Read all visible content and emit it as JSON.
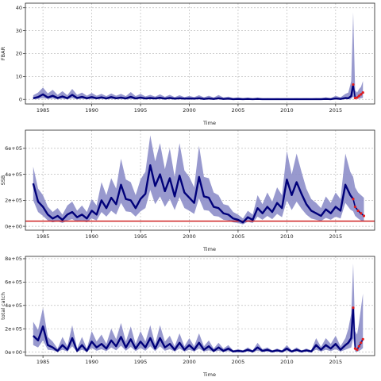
{
  "chart_data": [
    {
      "type": "line",
      "title": "",
      "xlabel": "Time",
      "ylabel": "FBAR",
      "xlim": [
        1983.2,
        2019.0
      ],
      "ylim": [
        -2,
        42
      ],
      "xticks": [
        1985,
        1990,
        1995,
        2000,
        2005,
        2010,
        2015
      ],
      "yticks": [
        0,
        10,
        20,
        30,
        40
      ],
      "ytick_labels": [
        "0",
        "10",
        "20",
        "30",
        "40"
      ],
      "grid": true,
      "colors": {
        "median": "#00007a",
        "band": "#8d8ec9",
        "projection": "#e21b1b"
      },
      "series": [
        {
          "role": "median",
          "x": [
            1984.0,
            1984.5,
            1985.0,
            1985.5,
            1986.0,
            1986.5,
            1987.0,
            1987.5,
            1988.0,
            1988.5,
            1989.0,
            1989.5,
            1990.0,
            1990.5,
            1991.0,
            1991.5,
            1992.0,
            1992.5,
            1993.0,
            1993.5,
            1994.0,
            1994.5,
            1995.0,
            1995.5,
            1996.0,
            1996.5,
            1997.0,
            1997.5,
            1998.0,
            1998.5,
            1999.0,
            1999.5,
            2000.0,
            2000.5,
            2001.0,
            2001.5,
            2002.0,
            2002.5,
            2003.0,
            2003.5,
            2004.0,
            2004.5,
            2005.0,
            2005.5,
            2006.0,
            2006.5,
            2007.0,
            2007.5,
            2008.0,
            2008.5,
            2009.0,
            2009.5,
            2010.0,
            2010.5,
            2011.0,
            2011.5,
            2012.0,
            2012.5,
            2013.0,
            2013.5,
            2014.0,
            2014.5,
            2015.0,
            2015.5,
            2016.0,
            2016.3,
            2016.6,
            2016.8
          ],
          "y": [
            0.5,
            1.0,
            2.2,
            0.8,
            1.6,
            0.6,
            1.3,
            0.5,
            2.0,
            0.6,
            1.1,
            0.5,
            1.0,
            0.5,
            0.9,
            0.4,
            1.0,
            0.5,
            0.8,
            0.4,
            1.1,
            0.4,
            0.8,
            0.4,
            0.6,
            0.4,
            0.7,
            0.3,
            0.6,
            0.3,
            0.5,
            0.3,
            0.4,
            0.3,
            0.5,
            0.2,
            0.4,
            0.2,
            0.5,
            0.2,
            0.3,
            0.1,
            0.2,
            0.1,
            0.2,
            0.1,
            0.2,
            0.1,
            0.1,
            0.1,
            0.1,
            0.1,
            0.1,
            0.1,
            0.1,
            0.1,
            0.1,
            0.1,
            0.1,
            0.1,
            0.2,
            0.1,
            0.4,
            0.2,
            0.6,
            0.5,
            1.5,
            6.5
          ],
          "lower": [
            0.1,
            0.2,
            0.6,
            0.2,
            0.4,
            0.1,
            0.3,
            0.1,
            0.5,
            0.1,
            0.3,
            0.1,
            0.2,
            0.1,
            0.2,
            0.1,
            0.2,
            0.1,
            0.2,
            0.1,
            0.2,
            0.1,
            0.2,
            0.1,
            0.1,
            0.1,
            0.1,
            0.1,
            0.1,
            0.1,
            0.1,
            0.1,
            0.1,
            0.1,
            0.1,
            0.0,
            0.1,
            0.0,
            0.1,
            0.0,
            0.1,
            0.0,
            0.0,
            0.0,
            0.0,
            0.0,
            0.0,
            0.0,
            0.0,
            0.0,
            0.0,
            0.0,
            0.0,
            0.0,
            0.0,
            0.0,
            0.0,
            0.0,
            0.0,
            0.0,
            0.0,
            0.0,
            0.1,
            0.0,
            0.1,
            0.1,
            0.3,
            1.2
          ],
          "upper": [
            1.8,
            3.0,
            5.2,
            2.6,
            4.2,
            2.0,
            3.6,
            1.8,
            4.6,
            2.0,
            3.0,
            1.6,
            2.8,
            1.6,
            2.4,
            1.4,
            2.6,
            1.6,
            2.4,
            1.4,
            3.2,
            1.4,
            2.4,
            1.3,
            2.0,
            1.2,
            2.2,
            1.1,
            2.0,
            1.0,
            1.8,
            1.0,
            1.5,
            1.0,
            1.8,
            0.9,
            1.6,
            0.8,
            1.9,
            0.8,
            1.2,
            0.6,
            0.9,
            0.5,
            0.8,
            0.4,
            0.8,
            0.4,
            0.5,
            0.4,
            0.5,
            0.4,
            0.5,
            0.4,
            0.5,
            0.4,
            0.5,
            0.4,
            0.6,
            0.5,
            0.9,
            0.5,
            1.6,
            0.9,
            2.4,
            3.0,
            8.0,
            38.0
          ]
        },
        {
          "role": "projection",
          "x": [
            2016.8,
            2017.0,
            2017.2,
            2017.4,
            2017.6,
            2017.8
          ],
          "y": [
            6.5,
            0.6,
            0.8,
            1.5,
            2.2,
            3.0
          ],
          "lower": [
            1.2,
            0.1,
            0.2,
            0.3,
            0.5,
            0.7
          ],
          "upper": [
            38.0,
            4.0,
            3.0,
            4.5,
            5.5,
            8.0
          ]
        }
      ]
    },
    {
      "type": "line",
      "title": "",
      "xlabel": "Time",
      "ylabel": "SSB",
      "xlim": [
        1983.2,
        2019.0
      ],
      "ylim": [
        -30000,
        740000
      ],
      "xticks": [
        1985,
        1990,
        1995,
        2000,
        2005,
        2010,
        2015
      ],
      "yticks": [
        0,
        200000,
        400000,
        600000
      ],
      "ytick_labels": [
        "0e+00",
        "2e+05",
        "4e+05",
        "6e+05"
      ],
      "grid": true,
      "reference_line": 40000,
      "colors": {
        "median": "#00007a",
        "band": "#8d8ec9",
        "projection": "#e21b1b",
        "reference": "#cc1111"
      },
      "series": [
        {
          "role": "median",
          "x": [
            1984.0,
            1984.5,
            1985.0,
            1985.5,
            1986.0,
            1986.5,
            1987.0,
            1987.5,
            1988.0,
            1988.5,
            1989.0,
            1989.5,
            1990.0,
            1990.5,
            1991.0,
            1991.5,
            1992.0,
            1992.5,
            1993.0,
            1993.5,
            1994.0,
            1994.5,
            1995.0,
            1995.5,
            1996.0,
            1996.5,
            1997.0,
            1997.5,
            1998.0,
            1998.5,
            1999.0,
            1999.5,
            2000.0,
            2000.5,
            2001.0,
            2001.5,
            2002.0,
            2002.5,
            2003.0,
            2003.5,
            2004.0,
            2004.5,
            2005.0,
            2005.5,
            2006.0,
            2006.5,
            2007.0,
            2007.5,
            2008.0,
            2008.5,
            2009.0,
            2009.5,
            2010.0,
            2010.5,
            2011.0,
            2011.5,
            2012.0,
            2012.5,
            2013.0,
            2013.5,
            2014.0,
            2014.5,
            2015.0,
            2015.5,
            2016.0,
            2016.5,
            2016.8
          ],
          "y": [
            330000,
            190000,
            150000,
            90000,
            60000,
            80000,
            50000,
            90000,
            110000,
            70000,
            90000,
            60000,
            120000,
            90000,
            200000,
            140000,
            220000,
            170000,
            320000,
            210000,
            200000,
            140000,
            210000,
            250000,
            470000,
            310000,
            400000,
            270000,
            370000,
            230000,
            390000,
            260000,
            220000,
            180000,
            380000,
            230000,
            220000,
            150000,
            140000,
            100000,
            90000,
            60000,
            50000,
            30000,
            70000,
            50000,
            140000,
            100000,
            150000,
            110000,
            180000,
            140000,
            360000,
            240000,
            340000,
            250000,
            170000,
            120000,
            100000,
            80000,
            130000,
            100000,
            150000,
            120000,
            320000,
            240000,
            210000
          ],
          "lower": [
            200000,
            110000,
            80000,
            45000,
            30000,
            40000,
            25000,
            45000,
            55000,
            35000,
            45000,
            30000,
            60000,
            45000,
            110000,
            75000,
            120000,
            90000,
            180000,
            115000,
            110000,
            75000,
            115000,
            140000,
            280000,
            170000,
            230000,
            150000,
            210000,
            125000,
            225000,
            140000,
            120000,
            95000,
            215000,
            125000,
            120000,
            80000,
            75000,
            50000,
            45000,
            30000,
            25000,
            15000,
            35000,
            25000,
            75000,
            50000,
            80000,
            55000,
            95000,
            70000,
            200000,
            125000,
            190000,
            135000,
            90000,
            60000,
            50000,
            40000,
            65000,
            50000,
            75000,
            60000,
            180000,
            130000,
            115000
          ],
          "upper": [
            460000,
            290000,
            240000,
            150000,
            110000,
            140000,
            90000,
            160000,
            190000,
            120000,
            160000,
            110000,
            210000,
            160000,
            340000,
            240000,
            370000,
            290000,
            520000,
            360000,
            340000,
            240000,
            360000,
            420000,
            700000,
            500000,
            640000,
            440000,
            600000,
            380000,
            640000,
            430000,
            380000,
            300000,
            620000,
            380000,
            370000,
            260000,
            240000,
            170000,
            160000,
            110000,
            90000,
            60000,
            120000,
            90000,
            240000,
            170000,
            260000,
            190000,
            300000,
            240000,
            580000,
            400000,
            560000,
            420000,
            290000,
            210000,
            180000,
            140000,
            230000,
            180000,
            260000,
            210000,
            560000,
            420000,
            380000
          ]
        },
        {
          "role": "projection",
          "x": [
            2016.8,
            2017.0,
            2017.3,
            2017.6,
            2017.9
          ],
          "y": [
            210000,
            150000,
            120000,
            100000,
            80000
          ],
          "lower": [
            115000,
            80000,
            60000,
            45000,
            35000
          ],
          "upper": [
            380000,
            300000,
            260000,
            240000,
            220000
          ]
        }
      ]
    },
    {
      "type": "line",
      "title": "",
      "xlabel": "Time",
      "ylabel": "total catch",
      "xlim": [
        1983.2,
        2019.0
      ],
      "ylim": [
        -30000,
        820000
      ],
      "xticks": [
        1985,
        1990,
        1995,
        2000,
        2005,
        2010,
        2015
      ],
      "yticks": [
        0,
        200000,
        400000,
        600000,
        800000
      ],
      "ytick_labels": [
        "0e+00",
        "2e+05",
        "4e+05",
        "6e+05",
        "8e+05"
      ],
      "grid": true,
      "colors": {
        "median": "#00007a",
        "band": "#8d8ec9",
        "projection": "#e21b1b"
      },
      "series": [
        {
          "role": "median",
          "x": [
            1984.0,
            1984.5,
            1985.0,
            1985.5,
            1986.0,
            1986.5,
            1987.0,
            1987.5,
            1988.0,
            1988.5,
            1989.0,
            1989.5,
            1990.0,
            1990.5,
            1991.0,
            1991.5,
            1992.0,
            1992.5,
            1993.0,
            1993.5,
            1994.0,
            1994.5,
            1995.0,
            1995.5,
            1996.0,
            1996.5,
            1997.0,
            1997.5,
            1998.0,
            1998.5,
            1999.0,
            1999.5,
            2000.0,
            2000.5,
            2001.0,
            2001.5,
            2002.0,
            2002.5,
            2003.0,
            2003.5,
            2004.0,
            2004.5,
            2005.0,
            2005.5,
            2006.0,
            2006.5,
            2007.0,
            2007.5,
            2008.0,
            2008.5,
            2009.0,
            2009.5,
            2010.0,
            2010.5,
            2011.0,
            2011.5,
            2012.0,
            2012.5,
            2013.0,
            2013.5,
            2014.0,
            2014.5,
            2015.0,
            2015.5,
            2016.0,
            2016.3,
            2016.6,
            2016.8
          ],
          "y": [
            140000,
            100000,
            220000,
            60000,
            40000,
            10000,
            60000,
            20000,
            120000,
            10000,
            60000,
            10000,
            90000,
            40000,
            70000,
            30000,
            100000,
            50000,
            130000,
            40000,
            110000,
            30000,
            90000,
            40000,
            120000,
            30000,
            120000,
            40000,
            70000,
            20000,
            80000,
            20000,
            60000,
            20000,
            80000,
            20000,
            50000,
            10000,
            40000,
            10000,
            30000,
            5000,
            10000,
            5000,
            20000,
            5000,
            40000,
            10000,
            20000,
            5000,
            15000,
            5000,
            30000,
            5000,
            20000,
            5000,
            15000,
            5000,
            60000,
            20000,
            60000,
            30000,
            70000,
            20000,
            60000,
            80000,
            120000,
            380000
          ],
          "lower": [
            60000,
            40000,
            100000,
            20000,
            15000,
            2000,
            20000,
            5000,
            50000,
            2000,
            20000,
            2000,
            35000,
            12000,
            25000,
            8000,
            40000,
            15000,
            55000,
            12000,
            45000,
            8000,
            35000,
            12000,
            50000,
            8000,
            50000,
            12000,
            25000,
            5000,
            30000,
            5000,
            20000,
            5000,
            30000,
            5000,
            15000,
            2000,
            12000,
            2000,
            8000,
            1000,
            2000,
            1000,
            5000,
            1000,
            12000,
            2000,
            5000,
            1000,
            3000,
            1000,
            8000,
            1000,
            5000,
            1000,
            3000,
            1000,
            20000,
            5000,
            20000,
            8000,
            25000,
            5000,
            20000,
            30000,
            40000,
            120000
          ],
          "upper": [
            260000,
            190000,
            380000,
            130000,
            90000,
            30000,
            130000,
            50000,
            230000,
            30000,
            130000,
            30000,
            180000,
            90000,
            150000,
            70000,
            200000,
            110000,
            250000,
            90000,
            220000,
            70000,
            180000,
            90000,
            230000,
            70000,
            230000,
            90000,
            140000,
            50000,
            160000,
            50000,
            120000,
            50000,
            160000,
            50000,
            100000,
            30000,
            80000,
            30000,
            60000,
            15000,
            25000,
            15000,
            40000,
            15000,
            80000,
            25000,
            40000,
            15000,
            30000,
            15000,
            60000,
            15000,
            40000,
            15000,
            30000,
            15000,
            120000,
            45000,
            120000,
            70000,
            140000,
            50000,
            120000,
            200000,
            330000,
            760000
          ]
        },
        {
          "role": "projection",
          "x": [
            2016.8,
            2017.0,
            2017.2,
            2017.4,
            2017.6,
            2017.8
          ],
          "y": [
            380000,
            30000,
            20000,
            50000,
            80000,
            110000
          ],
          "lower": [
            120000,
            5000,
            3000,
            10000,
            20000,
            35000
          ],
          "upper": [
            760000,
            180000,
            150000,
            250000,
            380000,
            500000
          ]
        }
      ]
    }
  ]
}
